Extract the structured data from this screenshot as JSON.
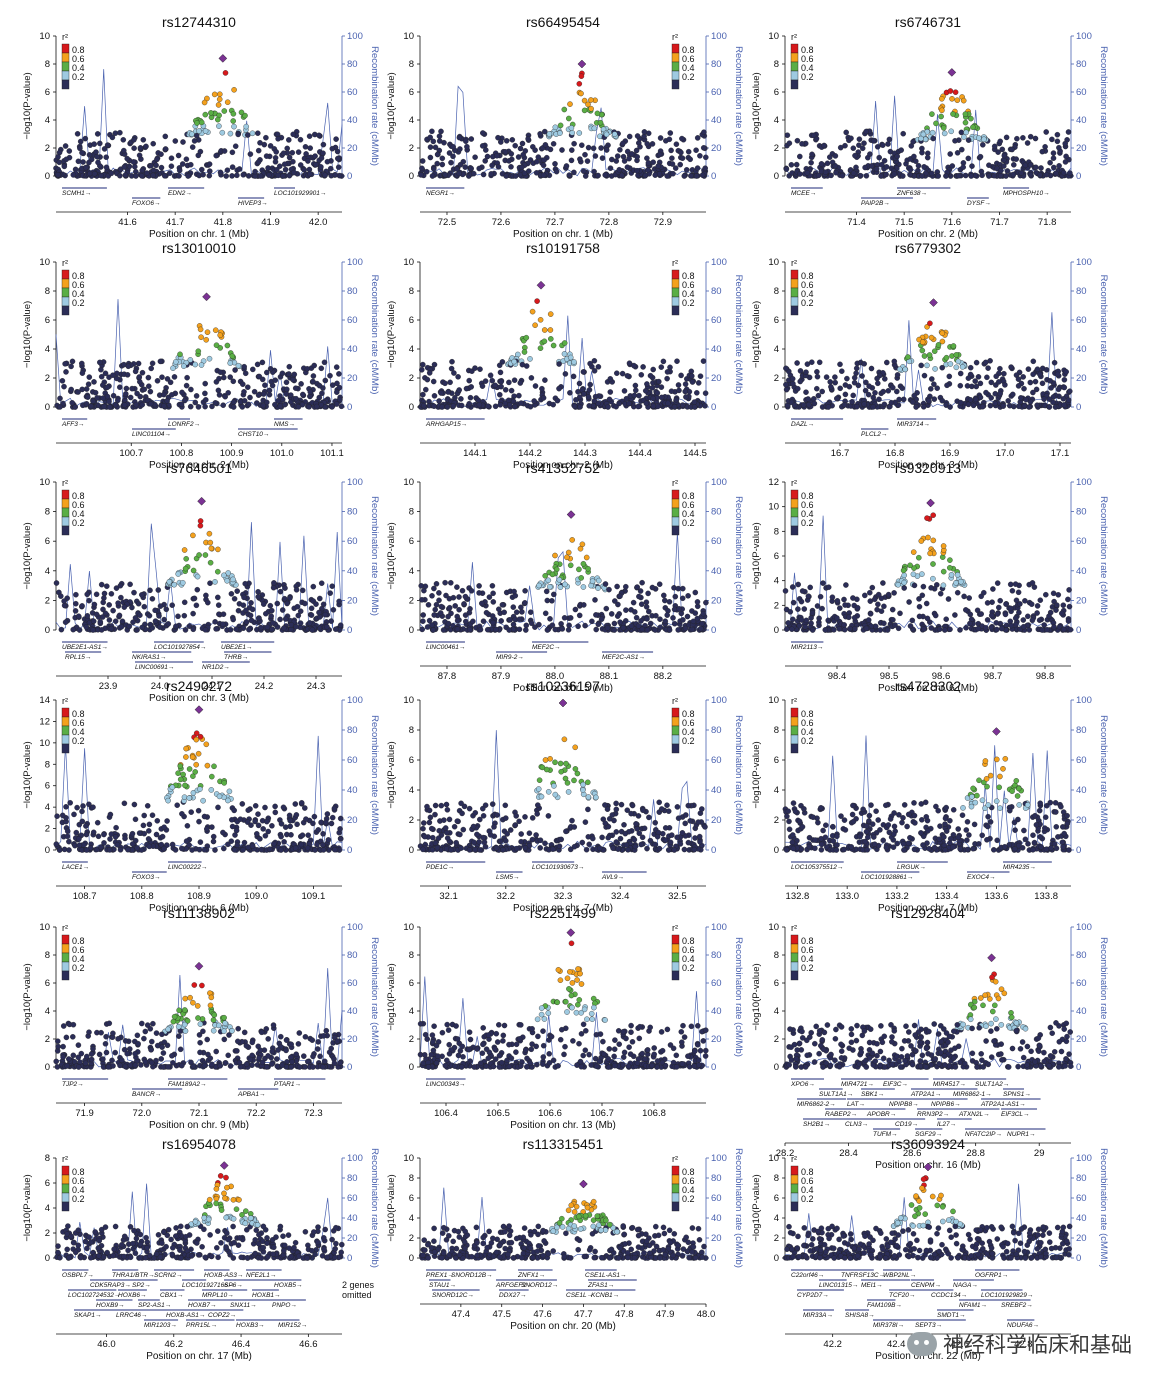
{
  "figure": {
    "r2_legend": {
      "title": "r²",
      "labels": [
        "0.8",
        "0.6",
        "0.4",
        "0.2"
      ],
      "colors": [
        "#d7191c",
        "#f4a11d",
        "#5aae45",
        "#9ecae1",
        "#2b2d57"
      ]
    },
    "recomb_color": "#4a62b0",
    "recomb_axis_label": "Recombination rate (cM/Mb)",
    "p_axis_label": "−log10(P-value)",
    "omitted_note": "2 genes omitted",
    "watermark": "神经科学临床和基础"
  },
  "chart_data": [
    {
      "type": "scatter",
      "title": "rs12744310",
      "xlabel": "Position on chr. 1 (Mb)",
      "ylim": [
        0,
        10
      ],
      "yticks": [
        0,
        2,
        4,
        6,
        8,
        10
      ],
      "rlim": [
        0,
        100
      ],
      "rticks": [
        0,
        20,
        40,
        60,
        80,
        100
      ],
      "xlim": [
        41.45,
        42.05
      ],
      "xticks": [
        "41.6",
        "41.7",
        "41.8",
        "41.9",
        "42.0"
      ],
      "xtickvals": [
        41.6,
        41.7,
        41.8,
        41.9,
        42.0
      ],
      "peak_pos": 41.8,
      "peak_val": 8.4,
      "genes": [
        "SCMH1",
        "FOXO6",
        "EDN2",
        "HIVEP3",
        "LOC101929901"
      ]
    },
    {
      "type": "scatter",
      "title": "rs66495454",
      "xlabel": "Position on chr. 1 (Mb)",
      "ylim": [
        0,
        10
      ],
      "yticks": [
        0,
        2,
        4,
        6,
        8,
        10
      ],
      "rlim": [
        0,
        100
      ],
      "rticks": [
        0,
        20,
        40,
        60,
        80,
        100
      ],
      "xlim": [
        72.45,
        72.98
      ],
      "xticks": [
        "72.5",
        "72.6",
        "72.7",
        "72.8",
        "72.9"
      ],
      "xtickvals": [
        72.5,
        72.6,
        72.7,
        72.8,
        72.9
      ],
      "peak_pos": 72.75,
      "peak_val": 8.0,
      "genes": [
        "NEGR1"
      ]
    },
    {
      "type": "scatter",
      "title": "rs6746731",
      "xlabel": "Position on chr. 2 (Mb)",
      "ylim": [
        0,
        10
      ],
      "yticks": [
        0,
        2,
        4,
        6,
        8,
        10
      ],
      "rlim": [
        0,
        100
      ],
      "rticks": [
        0,
        20,
        40,
        60,
        80,
        100
      ],
      "xlim": [
        71.25,
        71.85
      ],
      "xticks": [
        "71.4",
        "71.5",
        "71.6",
        "71.7",
        "71.8"
      ],
      "xtickvals": [
        71.4,
        71.5,
        71.6,
        71.7,
        71.8
      ],
      "peak_pos": 71.6,
      "peak_val": 7.4,
      "genes": [
        "MCEE",
        "PAIP2B",
        "ZNF638",
        "DYSF",
        "MPHOSPH10"
      ]
    },
    {
      "type": "scatter",
      "title": "rs13010010",
      "xlabel": "Position on chr. 2 (Mb)",
      "ylim": [
        0,
        10
      ],
      "yticks": [
        0,
        2,
        4,
        6,
        8,
        10
      ],
      "rlim": [
        0,
        100
      ],
      "rticks": [
        0,
        20,
        40,
        60,
        80,
        100
      ],
      "xlim": [
        100.55,
        101.12
      ],
      "xticks": [
        "100.7",
        "100.8",
        "100.9",
        "101.0",
        "101.1"
      ],
      "xtickvals": [
        100.7,
        100.8,
        100.9,
        101.0,
        101.1
      ],
      "peak_pos": 100.85,
      "peak_val": 7.6,
      "genes": [
        "AFF3",
        "LINC01104",
        "LONRF2",
        "CHST10",
        "NMS"
      ]
    },
    {
      "type": "scatter",
      "title": "rs10191758",
      "xlabel": "Position on chr. 2 (Mb)",
      "ylim": [
        0,
        10
      ],
      "yticks": [
        0,
        2,
        4,
        6,
        8,
        10
      ],
      "rlim": [
        0,
        100
      ],
      "rticks": [
        0,
        20,
        40,
        60,
        80,
        100
      ],
      "xlim": [
        144.0,
        144.52
      ],
      "xticks": [
        "144.1",
        "144.2",
        "144.3",
        "144.4",
        "144.5"
      ],
      "xtickvals": [
        144.1,
        144.2,
        144.3,
        144.4,
        144.5
      ],
      "peak_pos": 144.22,
      "peak_val": 8.4,
      "genes": [
        "ARHGAP15"
      ]
    },
    {
      "type": "scatter",
      "title": "rs6779302",
      "xlabel": "Position on chr. 3 (Mb)",
      "ylim": [
        0,
        10
      ],
      "yticks": [
        0,
        2,
        4,
        6,
        8,
        10
      ],
      "rlim": [
        0,
        100
      ],
      "rticks": [
        0,
        20,
        40,
        60,
        80,
        100
      ],
      "xlim": [
        16.6,
        17.12
      ],
      "xticks": [
        "16.7",
        "16.8",
        "16.9",
        "17.0",
        "17.1"
      ],
      "xtickvals": [
        16.7,
        16.8,
        16.9,
        17.0,
        17.1
      ],
      "peak_pos": 16.87,
      "peak_val": 7.2,
      "genes": [
        "DAZL",
        "PLCL2",
        "MIR3714"
      ]
    },
    {
      "type": "scatter",
      "title": "rs7646501",
      "xlabel": "Position on chr. 3 (Mb)",
      "ylim": [
        0,
        10
      ],
      "yticks": [
        0,
        2,
        4,
        6,
        8,
        10
      ],
      "rlim": [
        0,
        100
      ],
      "rticks": [
        0,
        20,
        40,
        60,
        80,
        100
      ],
      "xlim": [
        23.8,
        24.35
      ],
      "xticks": [
        "23.9",
        "24.0",
        "24.1",
        "24.2",
        "24.3"
      ],
      "xtickvals": [
        23.9,
        24.0,
        24.1,
        24.2,
        24.3
      ],
      "peak_pos": 24.08,
      "peak_val": 8.7,
      "genes": [
        "UBE2E1-AS1",
        "NKIRAS1",
        "NR1D2",
        "UBE2E1",
        "RPL15",
        "LINC00691",
        "LOC101927854",
        "THRB"
      ]
    },
    {
      "type": "scatter",
      "title": "rs41352752",
      "xlabel": "Position on chr. 5 (Mb)",
      "ylim": [
        0,
        10
      ],
      "yticks": [
        0,
        2,
        4,
        6,
        8,
        10
      ],
      "rlim": [
        0,
        100
      ],
      "rticks": [
        0,
        20,
        40,
        60,
        80,
        100
      ],
      "xlim": [
        87.75,
        88.28
      ],
      "xticks": [
        "87.8",
        "87.9",
        "88.0",
        "88.1",
        "88.2"
      ],
      "xtickvals": [
        87.8,
        87.9,
        88.0,
        88.1,
        88.2
      ],
      "peak_pos": 88.03,
      "peak_val": 7.8,
      "genes": [
        "LINC00461",
        "MIR9-2",
        "MEF2C",
        "MEF2C-AS1"
      ]
    },
    {
      "type": "scatter",
      "title": "rs9320913",
      "xlabel": "Position on chr. 6 (Mb)",
      "ylim": [
        0,
        12
      ],
      "yticks": [
        0,
        2,
        4,
        6,
        8,
        10,
        12
      ],
      "rlim": [
        0,
        100
      ],
      "rticks": [
        0,
        20,
        40,
        60,
        80,
        100
      ],
      "xlim": [
        98.3,
        98.85
      ],
      "xticks": [
        "98.4",
        "98.5",
        "98.6",
        "98.7",
        "98.8"
      ],
      "xtickvals": [
        98.4,
        98.5,
        98.6,
        98.7,
        98.8
      ],
      "peak_pos": 98.58,
      "peak_val": 10.3,
      "genes": [
        "MIR2113"
      ]
    },
    {
      "type": "scatter",
      "title": "rs2490272",
      "xlabel": "Position on chr. 6 (Mb)",
      "ylim": [
        0,
        14
      ],
      "yticks": [
        0,
        2,
        4,
        6,
        8,
        10,
        12,
        14
      ],
      "rlim": [
        0,
        100
      ],
      "rticks": [
        0,
        20,
        40,
        60,
        80,
        100
      ],
      "xlim": [
        108.65,
        109.15
      ],
      "xticks": [
        "108.7",
        "108.8",
        "108.9",
        "109.0",
        "109.1"
      ],
      "xtickvals": [
        108.7,
        108.8,
        108.9,
        109.0,
        109.1
      ],
      "peak_pos": 108.9,
      "peak_val": 13.1,
      "genes": [
        "LACE1",
        "FOXO3",
        "LINC00222"
      ]
    },
    {
      "type": "scatter",
      "title": "rs10236197",
      "xlabel": "Position on chr. 7 (Mb)",
      "ylim": [
        0,
        10
      ],
      "yticks": [
        0,
        2,
        4,
        6,
        8,
        10
      ],
      "rlim": [
        0,
        100
      ],
      "rticks": [
        0,
        20,
        40,
        60,
        80,
        100
      ],
      "xlim": [
        32.05,
        32.55
      ],
      "xticks": [
        "32.1",
        "32.2",
        "32.3",
        "32.4",
        "32.5"
      ],
      "xtickvals": [
        32.1,
        32.2,
        32.3,
        32.4,
        32.5
      ],
      "peak_pos": 32.3,
      "peak_val": 9.8,
      "genes": [
        "PDE1C",
        "LSM5",
        "LOC101930673",
        "AVL9"
      ]
    },
    {
      "type": "scatter",
      "title": "rs4728302",
      "xlabel": "Position on chr. 7 (Mb)",
      "ylim": [
        0,
        10
      ],
      "yticks": [
        0,
        2,
        4,
        6,
        8,
        10
      ],
      "rlim": [
        0,
        100
      ],
      "rticks": [
        0,
        20,
        40,
        60,
        80,
        100
      ],
      "xlim": [
        132.75,
        133.9
      ],
      "xticks": [
        "132.8",
        "133.0",
        "133.2",
        "133.4",
        "133.6",
        "133.8"
      ],
      "xtickvals": [
        132.8,
        133.0,
        133.2,
        133.4,
        133.6,
        133.8
      ],
      "peak_pos": 133.6,
      "peak_val": 7.9,
      "genes": [
        "LOC105375512",
        "LOC101928861",
        "LRGUK",
        "EXOC4",
        "MIR4235"
      ]
    },
    {
      "type": "scatter",
      "title": "rs11138902",
      "xlabel": "Position on chr. 9 (Mb)",
      "ylim": [
        0,
        10
      ],
      "yticks": [
        0,
        2,
        4,
        6,
        8,
        10
      ],
      "rlim": [
        0,
        100
      ],
      "rticks": [
        0,
        20,
        40,
        60,
        80,
        100
      ],
      "xlim": [
        71.85,
        72.35
      ],
      "xticks": [
        "71.9",
        "72.0",
        "72.1",
        "72.2",
        "72.3"
      ],
      "xtickvals": [
        71.9,
        72.0,
        72.1,
        72.2,
        72.3
      ],
      "peak_pos": 72.1,
      "peak_val": 7.2,
      "genes": [
        "TJP2",
        "BANCR",
        "FAM189A2",
        "APBA1",
        "PTAR1"
      ]
    },
    {
      "type": "scatter",
      "title": "rs2251499",
      "xlabel": "Position on chr. 13 (Mb)",
      "ylim": [
        0,
        10
      ],
      "yticks": [
        0,
        2,
        4,
        6,
        8,
        10
      ],
      "rlim": [
        0,
        100
      ],
      "rticks": [
        0,
        20,
        40,
        60,
        80,
        100
      ],
      "xlim": [
        106.35,
        106.9
      ],
      "xticks": [
        "106.4",
        "106.5",
        "106.6",
        "106.7",
        "106.8"
      ],
      "xtickvals": [
        106.4,
        106.5,
        106.6,
        106.7,
        106.8
      ],
      "peak_pos": 106.64,
      "peak_val": 9.6,
      "genes": [
        "LINC00343"
      ]
    },
    {
      "type": "scatter",
      "title": "rs12928404",
      "xlabel": "Position on chr. 16 (Mb)",
      "ylim": [
        0,
        10
      ],
      "yticks": [
        0,
        2,
        4,
        6,
        8,
        10
      ],
      "rlim": [
        0,
        100
      ],
      "rticks": [
        0,
        20,
        40,
        60,
        80,
        100
      ],
      "xlim": [
        28.2,
        29.1
      ],
      "xticks": [
        "28.2",
        "28.4",
        "28.6",
        "28.8",
        "29"
      ],
      "xtickvals": [
        28.2,
        28.4,
        28.6,
        28.8,
        29.0
      ],
      "peak_pos": 28.85,
      "peak_val": 7.8,
      "genes": [
        "XPO6",
        "SBK1",
        "NPIPB6",
        "EIF3CL",
        "CLN3",
        "SGF29",
        "EIF3C",
        "MIR6862-1",
        "MIR6862-2",
        "APOBR",
        "IL27",
        "NUPR1",
        "SULT1A2",
        "SULT1A1",
        "NPIPB8",
        "ATXN2L",
        "SH2B1",
        "TUFM",
        "MIR4721",
        "ATP2A1",
        "ATP2A1-AS1",
        "RABEP2",
        "CD19",
        "NFATC2IP",
        "MIR4517",
        "SPNS1",
        "LAT",
        "RRN3P2"
      ]
    },
    {
      "type": "scatter",
      "title": "rs16954078",
      "xlabel": "Position on chr. 17 (Mb)",
      "ylim": [
        0,
        8
      ],
      "yticks": [
        0,
        2,
        4,
        6,
        8
      ],
      "rlim": [
        0,
        100
      ],
      "rticks": [
        0,
        20,
        40,
        60,
        80,
        100
      ],
      "xlim": [
        45.85,
        46.7
      ],
      "xticks": [
        "46.0",
        "46.2",
        "46.4",
        "46.6"
      ],
      "xtickvals": [
        46.0,
        46.2,
        46.4,
        46.6
      ],
      "peak_pos": 46.35,
      "peak_val": 7.4,
      "genes": [
        "OSBPL7",
        "SP2",
        "MRPL10",
        "PNPO",
        "LRRC46",
        "PRR15L",
        "SCRN2",
        "SP6",
        "LOC102724532",
        "SP2-AS1",
        "COPZ2",
        "MIR152",
        "NFE2L1",
        "CDK5RAP3",
        "CBX1",
        "SNX11",
        "SKAP1",
        "MIR1203",
        "THRA1/BTR",
        "LOC101927166",
        "HOXB1",
        "HOXB9",
        "HOXB-AS1",
        "HOXB3",
        "HOXB-AS3",
        "HOXB5",
        "HOXB6",
        "HOXB7"
      ]
    },
    {
      "type": "scatter",
      "title": "rs113315451",
      "xlabel": "Position on chr. 20 (Mb)",
      "ylim": [
        0,
        10
      ],
      "yticks": [
        0,
        2,
        4,
        6,
        8,
        10
      ],
      "rlim": [
        0,
        100
      ],
      "rticks": [
        0,
        20,
        40,
        60,
        80,
        100
      ],
      "xlim": [
        47.3,
        48.0
      ],
      "xticks": [
        "47.4",
        "47.5",
        "47.6",
        "47.7",
        "47.8",
        "47.9",
        "48.0"
      ],
      "xtickvals": [
        47.4,
        47.5,
        47.6,
        47.7,
        47.8,
        47.9,
        48.0
      ],
      "peak_pos": 47.7,
      "peak_val": 7.4,
      "genes": [
        "PREX1",
        "ARFGEF2",
        "CSE1L",
        "CSE1L-AS1",
        "STAU1",
        "DDX27",
        "ZNFX1",
        "ZFAS1",
        "SNORD12C",
        "SNORD12B",
        "SNORD12",
        "KCNB1"
      ]
    },
    {
      "type": "scatter",
      "title": "rs36093924",
      "xlabel": "Position on chr. 22 (Mb)",
      "ylim": [
        0,
        10
      ],
      "yticks": [
        0,
        2,
        4,
        6,
        8,
        10
      ],
      "rlim": [
        0,
        100
      ],
      "rticks": [
        0,
        20,
        40,
        60,
        80,
        100
      ],
      "xlim": [
        42.05,
        42.95
      ],
      "xticks": [
        "42.2",
        "42.4",
        "42.6",
        "42.8"
      ],
      "xtickvals": [
        42.2,
        42.4,
        42.6,
        42.8
      ],
      "peak_pos": 42.5,
      "peak_val": 9.1,
      "genes": [
        "C22orf46",
        "MEI1",
        "CCDC134",
        "SREBF2",
        "SHISA8",
        "SEPT3",
        "WBP2NL",
        "NAGA",
        "CYP2D7",
        "FAM109B",
        "SMDT1",
        "NDUFA6",
        "OGFRP1",
        "LINC01315",
        "TCF20",
        "NFAM1",
        "MIR33A",
        "MIR378I",
        "TNFRSF13C",
        "CENPM",
        "LOC101929829"
      ]
    }
  ]
}
